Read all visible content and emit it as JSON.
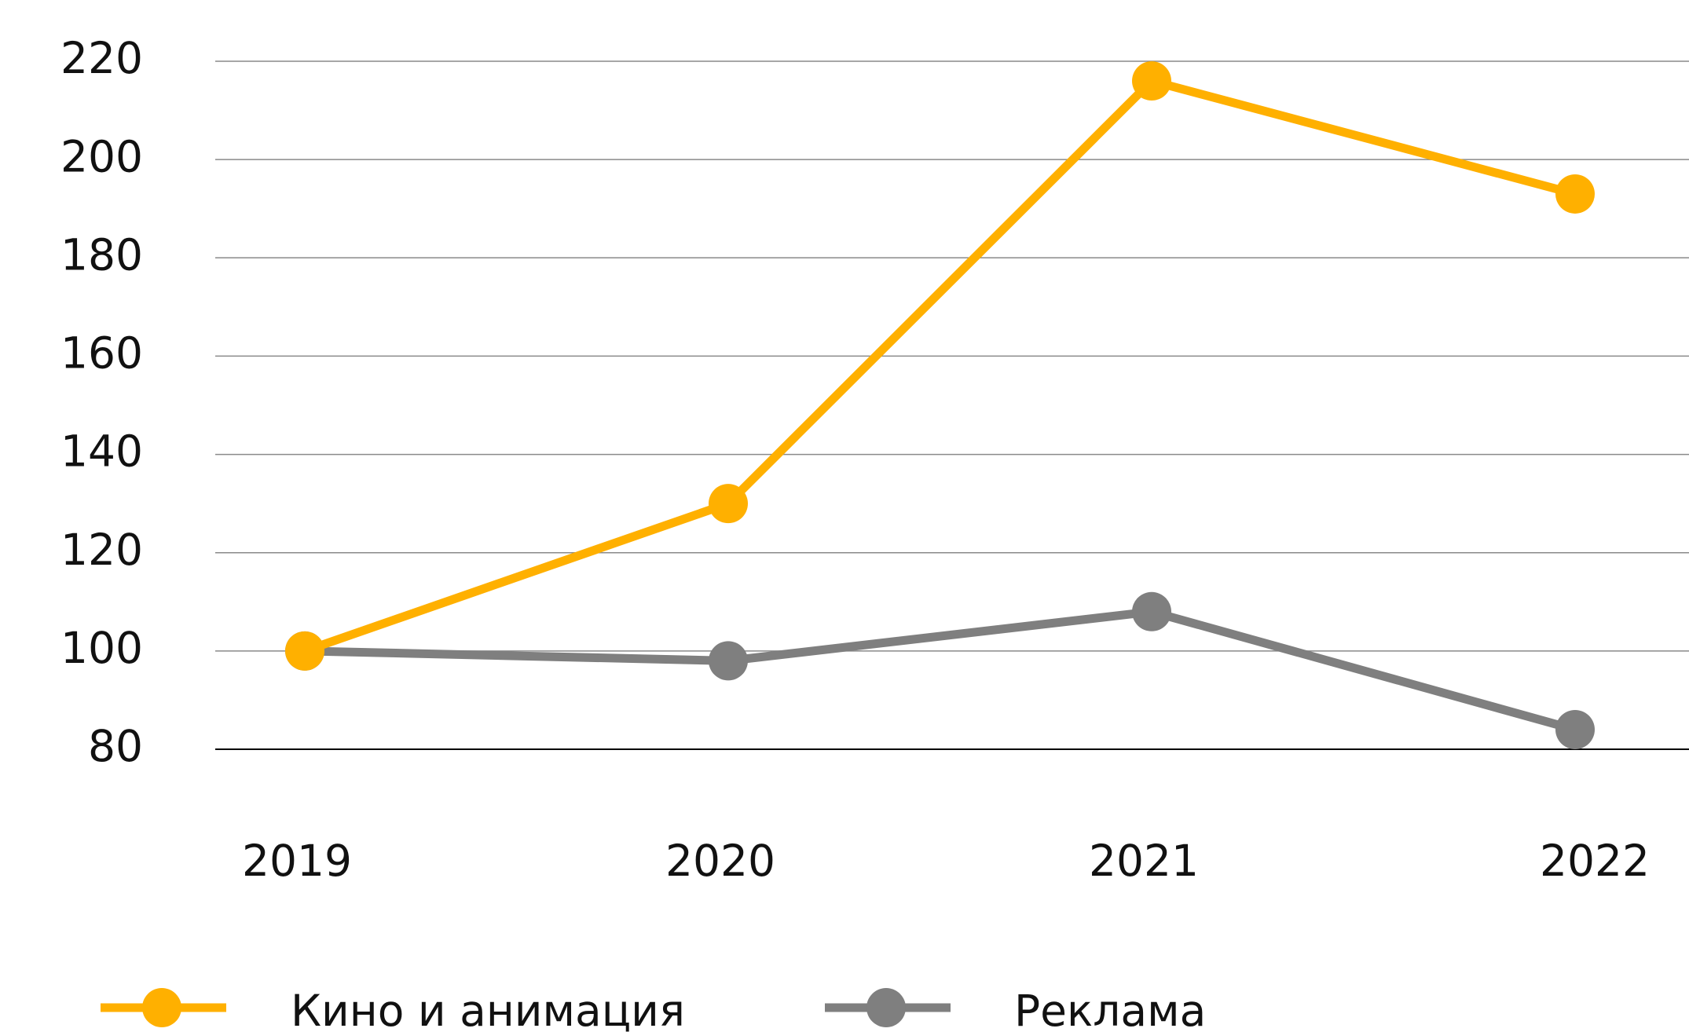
{
  "chart_data": {
    "type": "line",
    "categories": [
      "2019",
      "2020",
      "2021",
      "2022"
    ],
    "series": [
      {
        "name": "Кино и анимация",
        "color": "#ffb000",
        "values": [
          100,
          130,
          216,
          193
        ]
      },
      {
        "name": "Реклама",
        "color": "#7f7f7f",
        "values": [
          100,
          98,
          108,
          84
        ]
      }
    ],
    "ylim": [
      80,
      220
    ],
    "yticks": [
      80,
      100,
      120,
      140,
      160,
      180,
      200,
      220
    ],
    "grid": true,
    "legend": "bottom"
  }
}
